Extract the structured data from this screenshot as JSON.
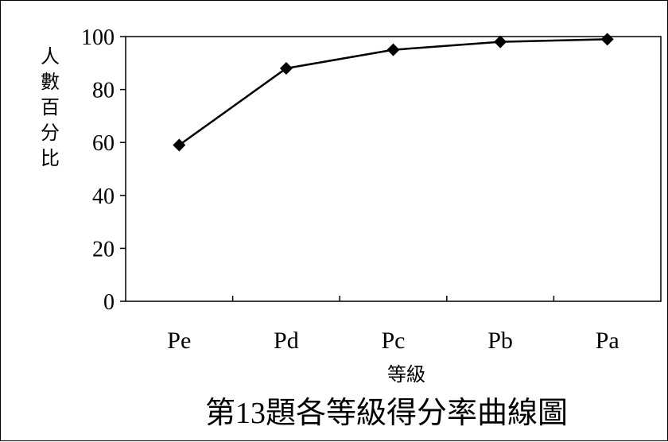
{
  "chart_data": {
    "type": "line",
    "title": "第13題各等級得分率曲線圖",
    "xlabel": "等級",
    "ylabel": "人數百分比",
    "categories": [
      "Pe",
      "Pd",
      "Pc",
      "Pb",
      "Pa"
    ],
    "series": [
      {
        "values": [
          59,
          88,
          95,
          98,
          99
        ]
      }
    ],
    "ylim": [
      0,
      100
    ],
    "yticks": [
      0,
      20,
      40,
      60,
      80,
      100
    ],
    "grid": false,
    "legend": "none",
    "marker": "diamond",
    "line_color": "#000000"
  }
}
